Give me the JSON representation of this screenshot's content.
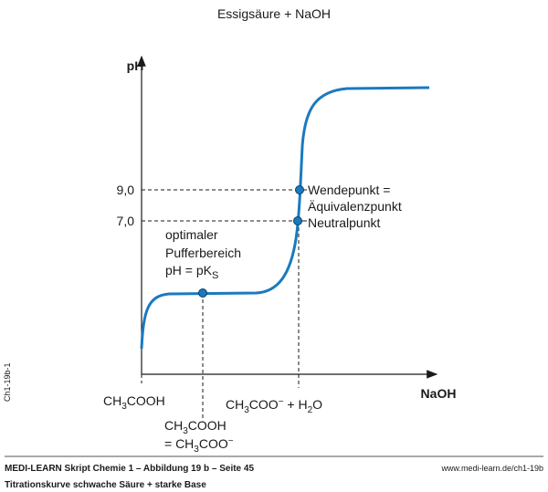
{
  "title": "Essigsäure + NaOH",
  "y_axis_label": "pH",
  "x_axis_label": "NaOH",
  "yticks": [
    {
      "value": 9,
      "label": "9,0"
    },
    {
      "value": 7,
      "label": "7,0"
    }
  ],
  "annotations": {
    "wendepunkt": [
      "Wendepunkt =",
      "Äquivalenzpunkt"
    ],
    "neutralpunkt": "Neutralpunkt",
    "puffer": [
      "optimaler",
      "Pufferbereich"
    ],
    "pks": [
      "pH = pK",
      "S"
    ],
    "start": [
      "CH",
      "3",
      "COOH"
    ],
    "end": [
      "CH",
      "3",
      "COO",
      "−",
      " + H",
      "2",
      "O"
    ],
    "half": [
      "CH",
      "3",
      "COOH"
    ],
    "half2": [
      "= CH",
      "3",
      "COO",
      "−"
    ]
  },
  "side_label": "Ch1-19b-1",
  "footer": {
    "source": "MEDI-LEARN Skript Chemie 1 – Abbildung 19 b – Seite 45",
    "url": "www.medi-learn.de/ch1-19b",
    "caption": "Titrationskurve schwache Säure + starke Base"
  }
}
